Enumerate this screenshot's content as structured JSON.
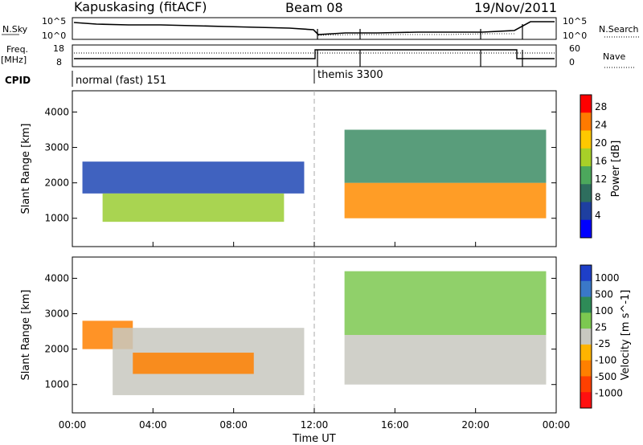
{
  "header": {
    "station": "Kapuskasing (fitACF)",
    "beam": "Beam 08",
    "date": "19/Nov/2011"
  },
  "panels": {
    "nsky": {
      "label": "N.Sky",
      "tick_top": "10^5",
      "tick_bottom": "10^0",
      "right_label": "N.Search",
      "right_tick_top": "10^5",
      "right_tick_bottom": "10^0"
    },
    "freq": {
      "label_line1": "Freq.",
      "label_line2": "[MHz]",
      "tick_top": "18",
      "tick_bottom": "8",
      "right_label": "Nave",
      "right_tick_top": "60",
      "right_tick_bottom": "0"
    },
    "cpid": {
      "label": "CPID",
      "segment1": "normal (fast) 151",
      "segment2": "themis 3300"
    }
  },
  "chart_data": [
    {
      "type": "heatmap",
      "title": "Power",
      "ylabel": "Slant Range [km]",
      "xlabel": "Time UT",
      "ylim": [
        200,
        4600
      ],
      "yticks": [
        1000,
        2000,
        3000,
        4000
      ],
      "x": [
        "00:00",
        "04:00",
        "08:00",
        "12:00",
        "16:00",
        "20:00",
        "00:00"
      ],
      "colorbar": {
        "label": "Power [dB]",
        "ticks": [
          "28",
          "24",
          "20",
          "16",
          "12",
          "8",
          "4"
        ],
        "range": [
          0,
          30
        ]
      },
      "regions": [
        {
          "t0": 0.5,
          "t1": 11.5,
          "r0": 1700,
          "r1": 2600,
          "level": 6
        },
        {
          "t0": 1.5,
          "t1": 10.5,
          "r0": 900,
          "r1": 1700,
          "level": 14
        },
        {
          "t0": 13.5,
          "t1": 23.5,
          "r0": 1000,
          "r1": 2000,
          "level": 22
        },
        {
          "t0": 13.5,
          "t1": 23.5,
          "r0": 2000,
          "r1": 3500,
          "level": 10
        }
      ]
    },
    {
      "type": "heatmap",
      "title": "Velocity",
      "ylabel": "Slant Range [km]",
      "xlabel": "Time UT",
      "ylim": [
        200,
        4600
      ],
      "yticks": [
        1000,
        2000,
        3000,
        4000
      ],
      "x": [
        "00:00",
        "04:00",
        "08:00",
        "12:00",
        "16:00",
        "20:00",
        "00:00"
      ],
      "colorbar": {
        "label": "Velocity [m s^-1]",
        "ticks": [
          "1000",
          "500",
          "100",
          "25",
          "-25",
          "-100",
          "-500",
          "-1000"
        ]
      },
      "regions": [
        {
          "t0": 0.5,
          "t1": 3.0,
          "r0": 2000,
          "r1": 2800,
          "value": -200
        },
        {
          "t0": 2.0,
          "t1": 11.5,
          "r0": 700,
          "r1": 2600,
          "value": 0
        },
        {
          "t0": 3.0,
          "t1": 9.0,
          "r0": 1300,
          "r1": 1900,
          "value": -150
        },
        {
          "t0": 13.5,
          "t1": 23.5,
          "r0": 1000,
          "r1": 2400,
          "value": 0
        },
        {
          "t0": 13.5,
          "t1": 23.5,
          "r0": 2400,
          "r1": 4200,
          "value": 80
        }
      ]
    }
  ]
}
